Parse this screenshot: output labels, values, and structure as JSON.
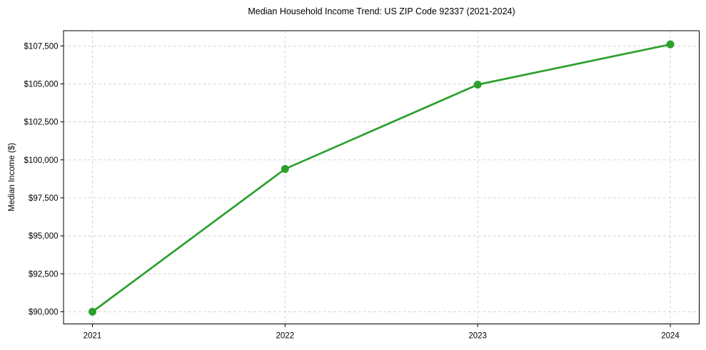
{
  "chart_data": {
    "type": "line",
    "title": "Median Household Income Trend: US ZIP Code 92337 (2021-2024)",
    "xlabel": "",
    "ylabel": "Median Income ($)",
    "x": [
      2021,
      2022,
      2023,
      2024
    ],
    "x_tick_labels": [
      "2021",
      "2022",
      "2023",
      "2024"
    ],
    "series": [
      {
        "name": "median-household-income",
        "values": [
          90000,
          99400,
          104950,
          107600
        ],
        "color": "#2ca02c"
      }
    ],
    "ytick_values": [
      90000,
      92500,
      95000,
      97500,
      100000,
      102500,
      105000,
      107500
    ],
    "ytick_labels": [
      "$90,000",
      "$92,500",
      "$95,000",
      "$97,500",
      "$100,000",
      "$102,500",
      "$105,000",
      "$107,500"
    ],
    "xlim": [
      2020.85,
      2024.15
    ],
    "ylim": [
      89200,
      108500
    ],
    "grid": true,
    "legend_position": "none",
    "line_color": "#2ca02c",
    "grid_color": "#cccccc",
    "spine_color": "#000000",
    "background": "#ffffff"
  }
}
